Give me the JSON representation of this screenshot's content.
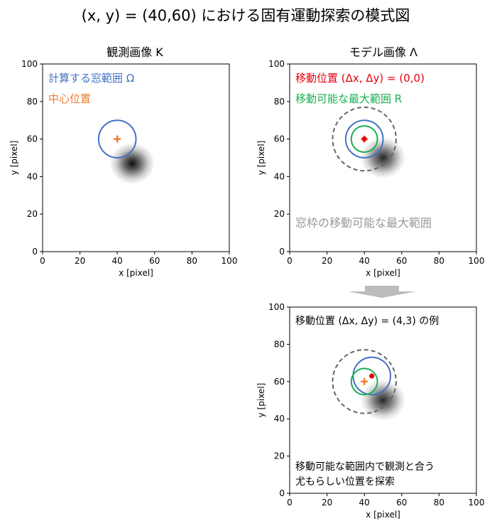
{
  "title": "(x, y) = (40,60) における固有運動探索の模式図",
  "axis": {
    "xlabel": "x [pixel]",
    "ylabel": "y [pixel]",
    "xticks": [
      "0",
      "20",
      "40",
      "60",
      "80",
      "100"
    ],
    "yticks": [
      "0",
      "20",
      "40",
      "60",
      "80",
      "100"
    ],
    "xlim": [
      0,
      100
    ],
    "ylim": [
      0,
      100
    ]
  },
  "panels": {
    "observation": {
      "title": "観測画像 K",
      "legend_window": "計算する窓範囲 Ω",
      "legend_center": "中心位置",
      "center": [
        40,
        60
      ],
      "window_radius": 10,
      "source_center": [
        48,
        47
      ]
    },
    "model": {
      "title": "モデル画像 Λ",
      "legend_position": "移動位置 (Δx, Δy) = (0,0)",
      "legend_range": "移動可能な最大範囲 R",
      "frame_range_label": "窓枠の移動可能な最大範囲",
      "center": [
        40,
        60
      ],
      "shift": [
        0,
        0
      ],
      "window_radius": 10,
      "move_radius": 7,
      "frame_radius": 17,
      "source_center": [
        50,
        50
      ]
    },
    "example": {
      "label": "移動位置 (Δx, Δy) = (4,3) の例",
      "caption_line1": "移動可能な範囲内で観測と合う",
      "caption_line2": "尤もらしい位置を探索",
      "center": [
        40,
        60
      ],
      "shift": [
        4,
        3
      ],
      "window_radius": 10,
      "move_radius": 7,
      "frame_radius": 17,
      "source_center": [
        50,
        50
      ]
    }
  },
  "colors": {
    "window": "#4472C4",
    "center": "#ED7D31",
    "position": "#E8000B",
    "range": "#1AAF54",
    "frame": "#666666",
    "frame_label": "#999999",
    "arrow": "#BBBBBB"
  }
}
